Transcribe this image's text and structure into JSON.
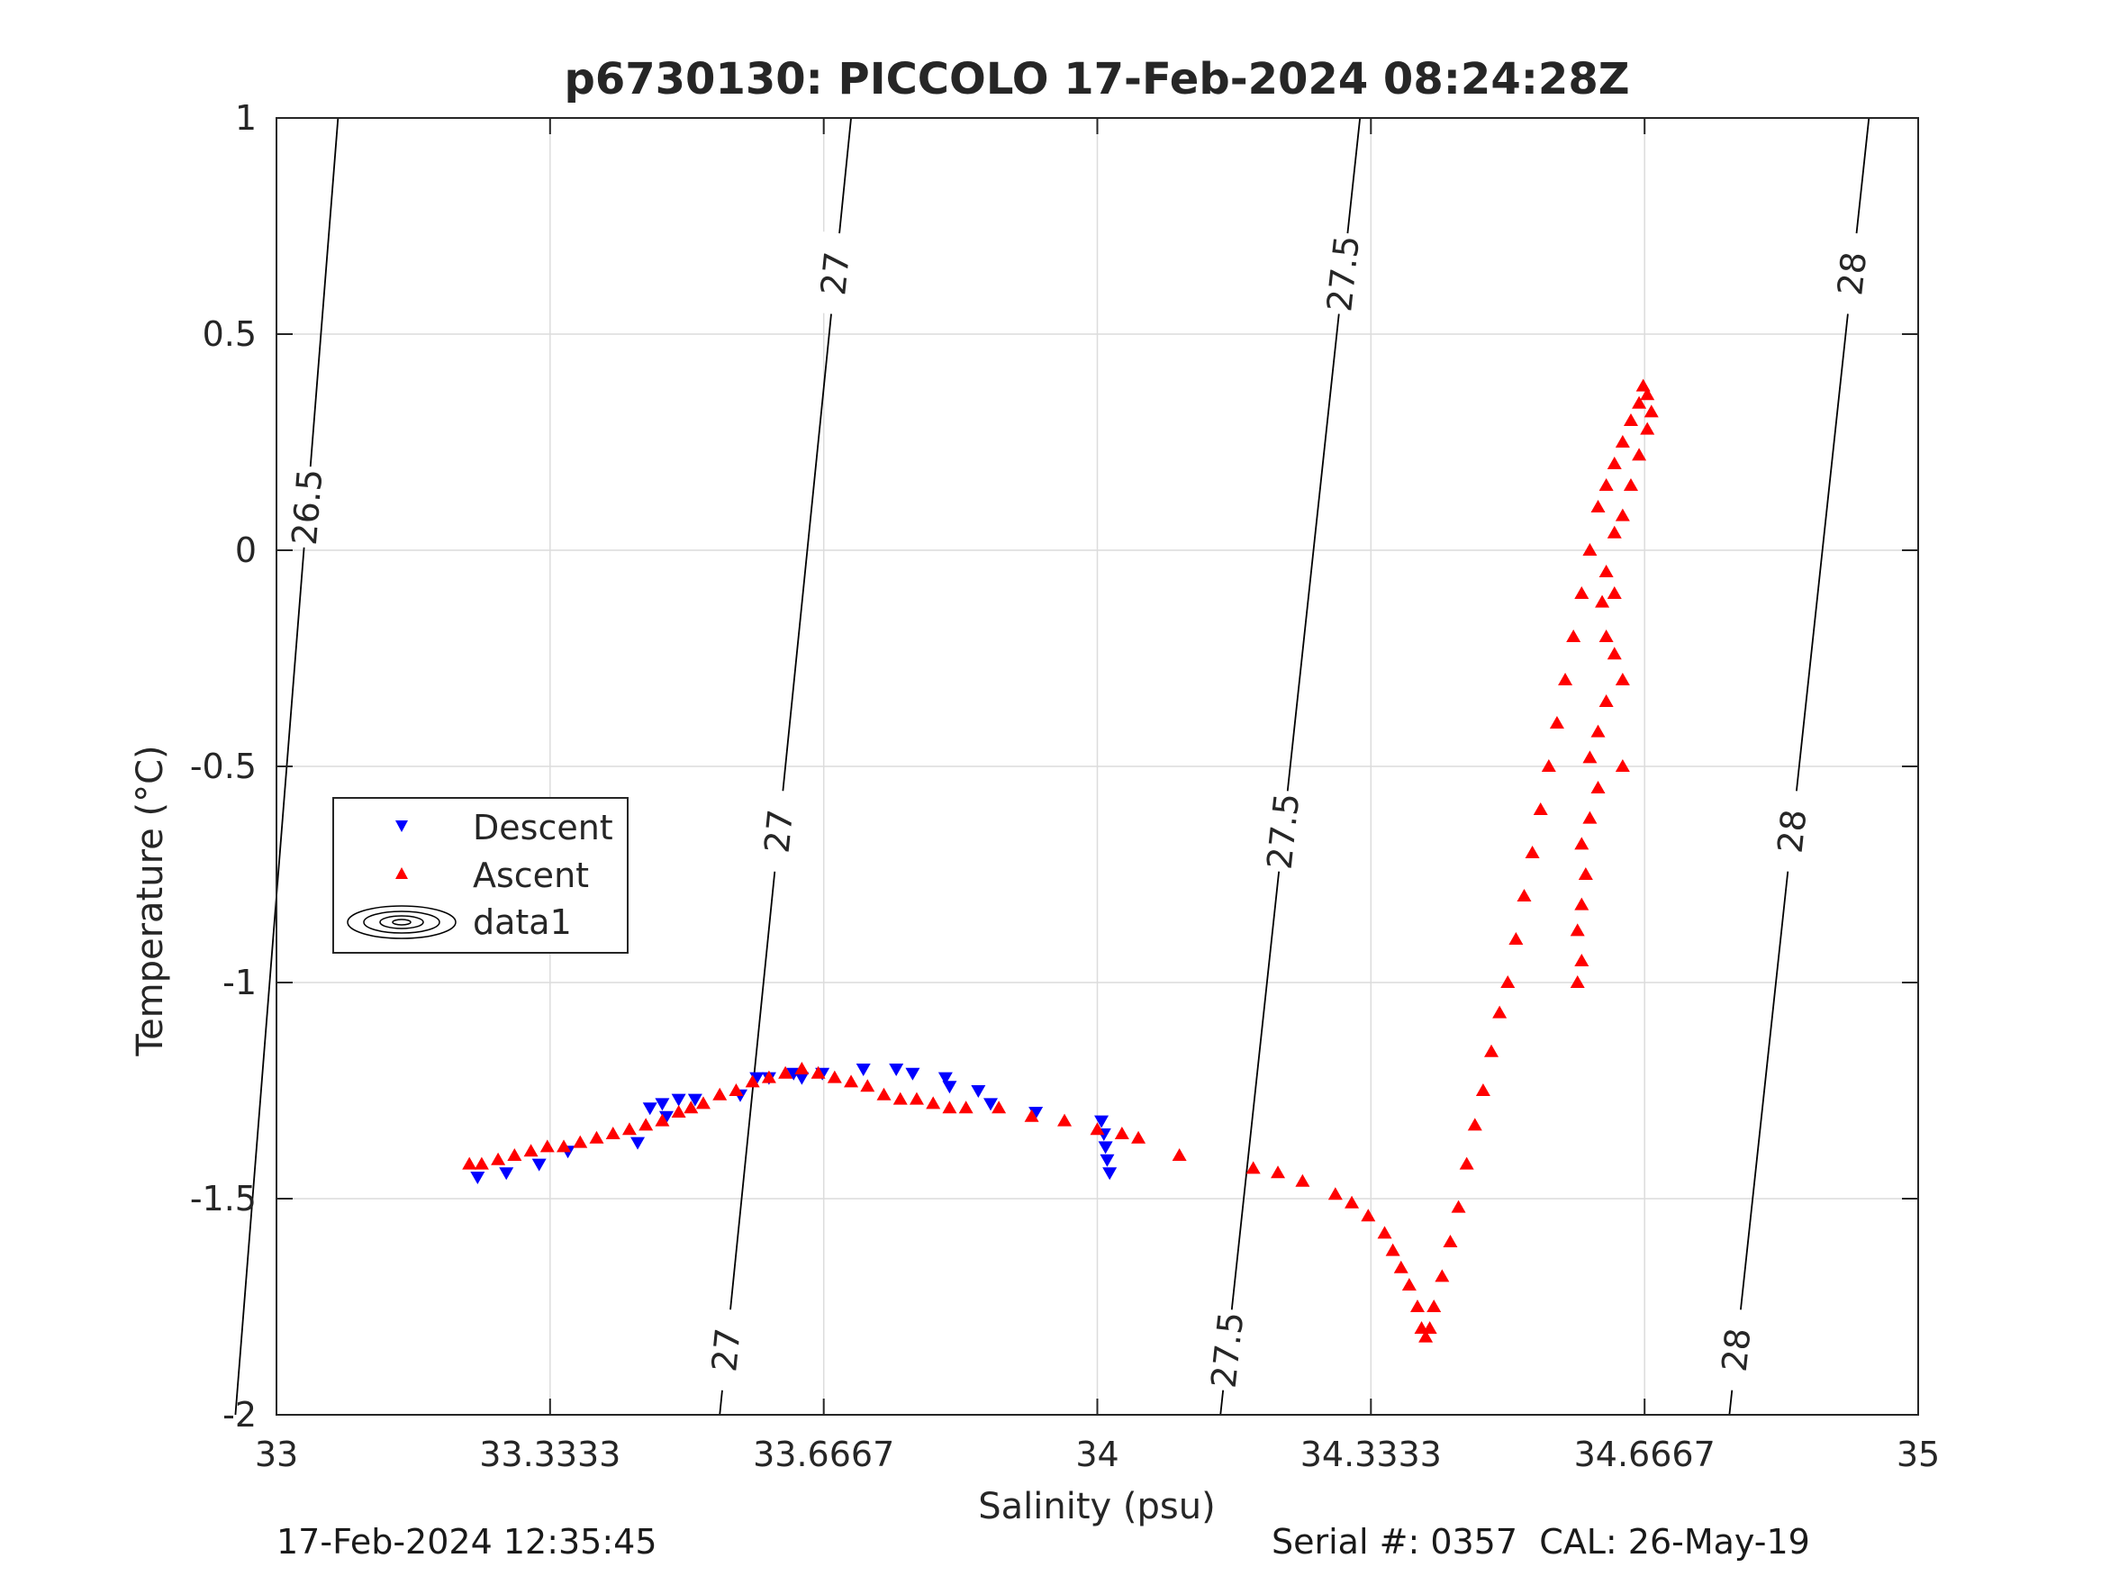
{
  "chart_data": {
    "type": "scatter",
    "title": "p6730130: PICCOLO 17-Feb-2024 08:24:28Z",
    "xlabel": "Salinity (psu)",
    "ylabel": "Temperature (°C)",
    "xlim": [
      33,
      35
    ],
    "ylim": [
      -2,
      1
    ],
    "x_ticks": [
      33,
      33.3333,
      33.6667,
      34,
      34.3333,
      34.6667,
      35
    ],
    "x_tick_labels": [
      "33",
      "33.3333",
      "33.6667",
      "34",
      "34.3333",
      "34.6667",
      "35"
    ],
    "y_ticks": [
      -2,
      -1.5,
      -1,
      -0.5,
      0,
      0.5,
      1
    ],
    "y_tick_labels": [
      "-2",
      "-1.5",
      "-1",
      "-0.5",
      "0",
      "0.5",
      "1"
    ],
    "grid": true,
    "legend": {
      "placement": "middle-left",
      "entries": [
        "Descent",
        "Ascent",
        "data1"
      ]
    },
    "series": [
      {
        "name": "Descent",
        "marker": "triangle-down",
        "color": "#0000ff",
        "points": [
          [
            33.245,
            -1.45
          ],
          [
            33.28,
            -1.44
          ],
          [
            33.32,
            -1.42
          ],
          [
            33.355,
            -1.39
          ],
          [
            33.44,
            -1.37
          ],
          [
            33.455,
            -1.29
          ],
          [
            33.475,
            -1.31
          ],
          [
            33.47,
            -1.28
          ],
          [
            33.49,
            -1.27
          ],
          [
            33.51,
            -1.27
          ],
          [
            33.565,
            -1.26
          ],
          [
            33.585,
            -1.22
          ],
          [
            33.6,
            -1.22
          ],
          [
            33.63,
            -1.21
          ],
          [
            33.64,
            -1.22
          ],
          [
            33.665,
            -1.21
          ],
          [
            33.715,
            -1.2
          ],
          [
            33.755,
            -1.2
          ],
          [
            33.775,
            -1.21
          ],
          [
            33.815,
            -1.22
          ],
          [
            33.82,
            -1.24
          ],
          [
            33.855,
            -1.25
          ],
          [
            33.87,
            -1.28
          ],
          [
            33.925,
            -1.3
          ],
          [
            34.005,
            -1.32
          ],
          [
            34.008,
            -1.35
          ],
          [
            34.01,
            -1.38
          ],
          [
            34.012,
            -1.41
          ],
          [
            34.015,
            -1.44
          ]
        ]
      },
      {
        "name": "Ascent",
        "marker": "triangle-up",
        "color": "#ff0000",
        "points": [
          [
            33.235,
            -1.42
          ],
          [
            33.25,
            -1.42
          ],
          [
            33.27,
            -1.41
          ],
          [
            33.29,
            -1.4
          ],
          [
            33.31,
            -1.39
          ],
          [
            33.33,
            -1.38
          ],
          [
            33.35,
            -1.38
          ],
          [
            33.37,
            -1.37
          ],
          [
            33.39,
            -1.36
          ],
          [
            33.41,
            -1.35
          ],
          [
            33.43,
            -1.34
          ],
          [
            33.45,
            -1.33
          ],
          [
            33.47,
            -1.32
          ],
          [
            33.49,
            -1.3
          ],
          [
            33.505,
            -1.29
          ],
          [
            33.52,
            -1.28
          ],
          [
            33.54,
            -1.26
          ],
          [
            33.56,
            -1.25
          ],
          [
            33.58,
            -1.23
          ],
          [
            33.6,
            -1.22
          ],
          [
            33.62,
            -1.21
          ],
          [
            33.64,
            -1.2
          ],
          [
            33.66,
            -1.21
          ],
          [
            33.68,
            -1.22
          ],
          [
            33.7,
            -1.23
          ],
          [
            33.72,
            -1.24
          ],
          [
            33.74,
            -1.26
          ],
          [
            33.76,
            -1.27
          ],
          [
            33.78,
            -1.27
          ],
          [
            33.8,
            -1.28
          ],
          [
            33.82,
            -1.29
          ],
          [
            33.84,
            -1.29
          ],
          [
            33.88,
            -1.29
          ],
          [
            33.92,
            -1.31
          ],
          [
            33.96,
            -1.32
          ],
          [
            34.0,
            -1.34
          ],
          [
            34.03,
            -1.35
          ],
          [
            34.05,
            -1.36
          ],
          [
            34.1,
            -1.4
          ],
          [
            34.19,
            -1.43
          ],
          [
            34.22,
            -1.44
          ],
          [
            34.25,
            -1.46
          ],
          [
            34.29,
            -1.49
          ],
          [
            34.31,
            -1.51
          ],
          [
            34.33,
            -1.54
          ],
          [
            34.35,
            -1.58
          ],
          [
            34.36,
            -1.62
          ],
          [
            34.37,
            -1.66
          ],
          [
            34.38,
            -1.7
          ],
          [
            34.39,
            -1.75
          ],
          [
            34.395,
            -1.8
          ],
          [
            34.4,
            -1.82
          ],
          [
            34.405,
            -1.8
          ],
          [
            34.41,
            -1.75
          ],
          [
            34.42,
            -1.68
          ],
          [
            34.43,
            -1.6
          ],
          [
            34.44,
            -1.52
          ],
          [
            34.45,
            -1.42
          ],
          [
            34.46,
            -1.33
          ],
          [
            34.47,
            -1.25
          ],
          [
            34.48,
            -1.16
          ],
          [
            34.49,
            -1.07
          ],
          [
            34.5,
            -1.0
          ],
          [
            34.51,
            -0.9
          ],
          [
            34.52,
            -0.8
          ],
          [
            34.53,
            -0.7
          ],
          [
            34.54,
            -0.6
          ],
          [
            34.55,
            -0.5
          ],
          [
            34.56,
            -0.4
          ],
          [
            34.57,
            -0.3
          ],
          [
            34.58,
            -0.2
          ],
          [
            34.59,
            -0.1
          ],
          [
            34.6,
            -0.0
          ],
          [
            34.61,
            0.1
          ],
          [
            34.62,
            0.15
          ],
          [
            34.63,
            0.2
          ],
          [
            34.64,
            0.25
          ],
          [
            34.65,
            0.3
          ],
          [
            34.66,
            0.34
          ],
          [
            34.665,
            0.38
          ],
          [
            34.67,
            0.36
          ],
          [
            34.675,
            0.32
          ],
          [
            34.67,
            0.28
          ],
          [
            34.66,
            0.22
          ],
          [
            34.65,
            0.15
          ],
          [
            34.64,
            0.08
          ],
          [
            34.63,
            0.04
          ],
          [
            34.62,
            -0.05
          ],
          [
            34.615,
            -0.12
          ],
          [
            34.62,
            -0.2
          ],
          [
            34.63,
            -0.24
          ],
          [
            34.64,
            -0.3
          ],
          [
            34.62,
            -0.35
          ],
          [
            34.61,
            -0.42
          ],
          [
            34.6,
            -0.48
          ],
          [
            34.61,
            -0.55
          ],
          [
            34.6,
            -0.62
          ],
          [
            34.59,
            -0.68
          ],
          [
            34.595,
            -0.75
          ],
          [
            34.59,
            -0.82
          ],
          [
            34.585,
            -0.88
          ],
          [
            34.59,
            -0.95
          ],
          [
            34.585,
            -1.0
          ],
          [
            34.64,
            -0.5
          ],
          [
            34.63,
            -0.1
          ]
        ]
      }
    ],
    "isopycnals": [
      {
        "label": "26.5",
        "s_top": 33.075,
        "s_bottom": 32.95
      },
      {
        "label": "27",
        "s_top": 33.7,
        "s_bottom": 33.54
      },
      {
        "label": "27.5",
        "s_top": 34.32,
        "s_bottom": 34.15
      },
      {
        "label": "28",
        "s_top": 34.94,
        "s_bottom": 34.77
      }
    ]
  },
  "footer": {
    "timestamp": "17-Feb-2024 12:35:45",
    "serial": "Serial #: 0357  CAL: 26-May-19"
  }
}
